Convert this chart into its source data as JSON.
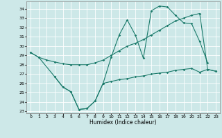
{
  "xlabel": "Humidex (Indice chaleur)",
  "bg_color": "#cde8e8",
  "line_color": "#1a7a6a",
  "xlim": [
    -0.5,
    23.5
  ],
  "ylim": [
    22.8,
    34.8
  ],
  "yticks": [
    23,
    24,
    25,
    26,
    27,
    28,
    29,
    30,
    31,
    32,
    33,
    34
  ],
  "xticks": [
    0,
    1,
    2,
    3,
    4,
    5,
    6,
    7,
    8,
    9,
    10,
    11,
    12,
    13,
    14,
    15,
    16,
    17,
    18,
    19,
    20,
    21,
    22,
    23
  ],
  "line1_x": [
    0,
    1,
    2,
    3,
    4,
    5,
    6,
    7,
    8,
    9,
    10,
    11,
    12,
    13,
    14,
    15,
    16,
    17,
    18,
    19,
    20,
    21,
    22,
    23
  ],
  "line1_y": [
    29.3,
    28.8,
    28.5,
    28.3,
    28.1,
    28.0,
    28.0,
    28.0,
    28.2,
    28.5,
    29.0,
    29.5,
    30.0,
    30.3,
    30.7,
    31.2,
    31.7,
    32.2,
    32.7,
    33.0,
    33.3,
    33.5,
    27.5,
    27.3
  ],
  "line2_x": [
    0,
    1,
    3,
    4,
    5,
    6,
    7,
    8,
    9,
    10,
    11,
    12,
    13,
    14,
    15,
    16,
    17,
    18,
    19,
    20,
    21,
    22
  ],
  "line2_y": [
    29.3,
    28.8,
    26.7,
    25.6,
    25.1,
    23.2,
    23.3,
    24.1,
    26.0,
    28.8,
    31.2,
    32.8,
    31.2,
    28.7,
    33.8,
    34.3,
    34.2,
    33.3,
    32.5,
    32.4,
    30.5,
    28.2
  ],
  "line3_x": [
    3,
    4,
    5,
    6,
    7,
    8,
    9,
    10,
    11,
    12,
    13,
    14,
    15,
    16,
    17,
    18,
    19,
    20,
    21,
    22,
    23
  ],
  "line3_y": [
    26.7,
    25.6,
    25.1,
    23.2,
    23.3,
    24.1,
    26.0,
    26.2,
    26.4,
    26.5,
    26.7,
    26.8,
    27.0,
    27.1,
    27.2,
    27.4,
    27.5,
    27.6,
    27.2,
    27.5,
    27.3
  ]
}
